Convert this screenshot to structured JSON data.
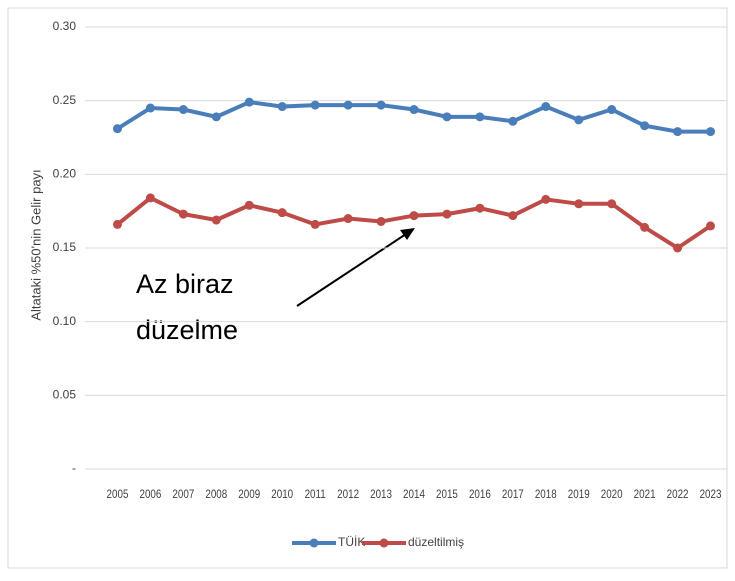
{
  "chart_data": {
    "type": "line",
    "y_axis_label": "Altataki %50'nin Gelir payı",
    "categories": [
      "2005",
      "2006",
      "2007",
      "2008",
      "2009",
      "2010",
      "2011",
      "2012",
      "2013",
      "2014",
      "2015",
      "2016",
      "2017",
      "2018",
      "2019",
      "2020",
      "2021",
      "2022",
      "2023"
    ],
    "series": [
      {
        "name": "TÜİK",
        "color": "#4a7ebb",
        "values": [
          0.231,
          0.245,
          0.244,
          0.239,
          0.249,
          0.246,
          0.247,
          0.247,
          0.247,
          0.244,
          0.239,
          0.239,
          0.236,
          0.246,
          0.237,
          0.244,
          0.233,
          0.229,
          0.229
        ]
      },
      {
        "name": "düzeltilmiş",
        "color": "#be4b48",
        "values": [
          0.166,
          0.184,
          0.173,
          0.169,
          0.179,
          0.174,
          0.166,
          0.17,
          0.168,
          0.172,
          0.173,
          0.177,
          0.172,
          0.183,
          0.18,
          0.18,
          0.164,
          0.15,
          0.165
        ]
      }
    ],
    "ylim": [
      0,
      0.3
    ],
    "yticks": [
      {
        "value": 0,
        "label": "-"
      },
      0.05,
      {
        "value": 0.1,
        "label": "0.10"
      },
      0.15,
      {
        "value": 0.2,
        "label": "0.20"
      },
      0.25,
      {
        "value": 0.3,
        "label": "0.30"
      }
    ],
    "grid": true,
    "legend": "bottom",
    "annotation": [
      "Az biraz",
      "düzelme"
    ]
  }
}
